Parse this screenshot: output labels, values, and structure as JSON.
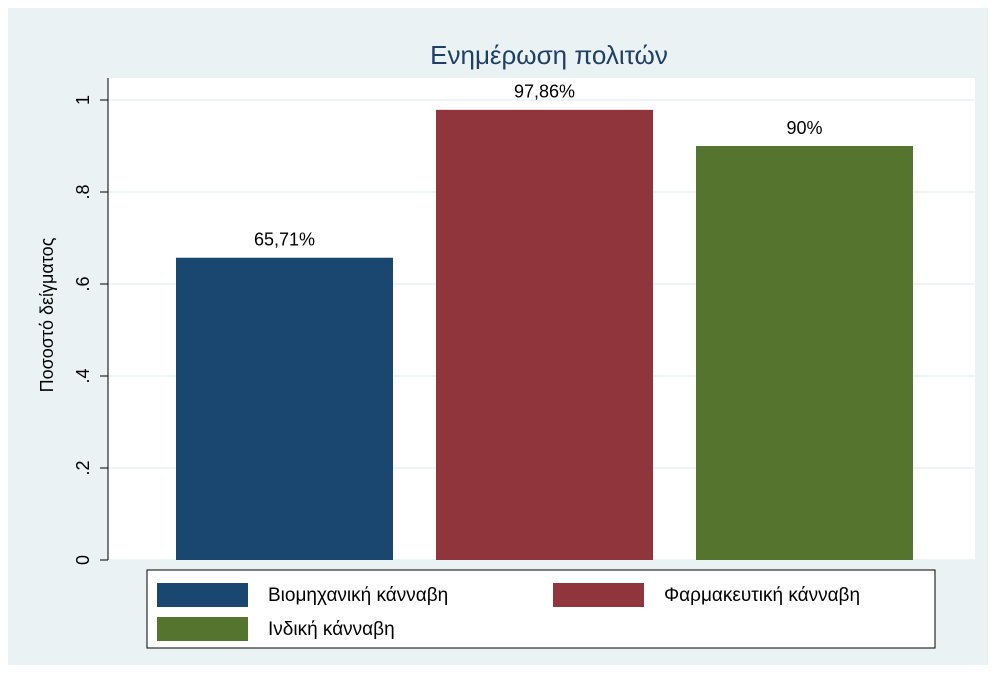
{
  "chart_data": {
    "type": "bar",
    "title": "Ενημέρωση πολιτών",
    "y_label": "Ποσοστό δείγματος",
    "categories": [
      "Βιομηχανική κάνναβη",
      "Φαρμακευτική κάνναβη",
      "Ινδική κάνναβη"
    ],
    "values": [
      0.6571,
      0.9786,
      0.9
    ],
    "value_labels": [
      "65,71%",
      "97,86%",
      "90%"
    ],
    "colors": [
      "#1a476f",
      "#90353b",
      "#55752f"
    ],
    "ylim": [
      0,
      1
    ],
    "yticks": [
      0,
      {
        "value": 0.2,
        "label": ".2"
      },
      {
        "value": 0.4,
        "label": ".4"
      },
      {
        "value": 0.6,
        "label": ".6"
      },
      {
        "value": 0.8,
        "label": ".8"
      },
      1
    ],
    "grid": true,
    "legend": "bottom"
  }
}
